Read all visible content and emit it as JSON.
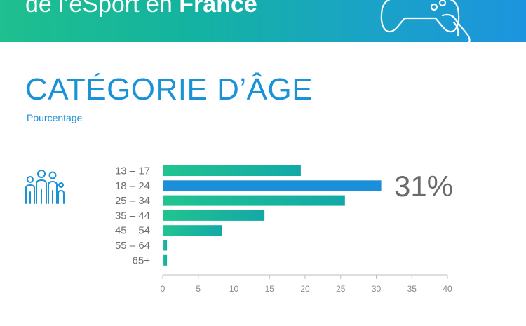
{
  "banner": {
    "title_prefix": "de l’eSport en ",
    "title_bold": "France",
    "icon": "gamepad-hand-icon",
    "gradient_start": "#1fbf8f",
    "gradient_end": "#1c94df"
  },
  "section": {
    "title": "CATÉGORIE D’ÂGE",
    "subtitle": "Pourcentage",
    "people_icon": "family-group-icon",
    "title_color": "#1a92d8"
  },
  "chart_data": {
    "type": "bar",
    "orientation": "horizontal",
    "categories": [
      "13 – 17",
      "18 – 24",
      "25 – 34",
      "35 – 44",
      "45 – 54",
      "55 – 64",
      "65+"
    ],
    "values": [
      19.4,
      30.7,
      25.6,
      14.3,
      8.3,
      0.6,
      0.6
    ],
    "highlight_index": 1,
    "highlight_label": "31%",
    "xlim": [
      0,
      40
    ],
    "xticks": [
      "0",
      "5",
      "10",
      "15",
      "20",
      "25",
      "30",
      "35",
      "40"
    ],
    "grid": false,
    "bar_color_start": "#21c48f",
    "bar_color_end": "#13a8a8",
    "highlight_color": "#1b8fd9"
  }
}
